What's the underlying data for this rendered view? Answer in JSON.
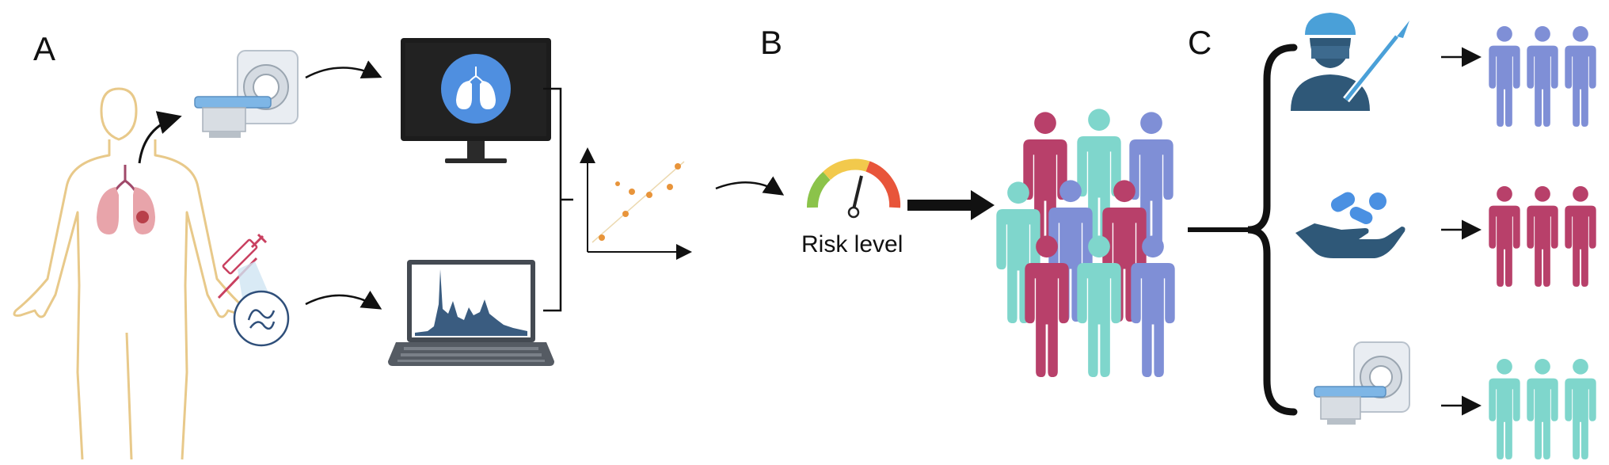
{
  "panels": {
    "a_label": "A",
    "b_label": "B",
    "c_label": "C"
  },
  "gauge": {
    "label": "Risk level"
  },
  "icons": {
    "body": "human-body-outline-icon",
    "ct": "ct-scanner-icon",
    "monitor": "monitor-lungs-icon",
    "syringe": "syringe-icon",
    "dna": "dna-sample-icon",
    "laptop": "laptop-spectrum-icon",
    "scatter": "scatter-plot-icon",
    "gauge": "risk-gauge-icon",
    "crowd": "patient-crowd-icon",
    "surgeon": "surgeon-scalpel-icon",
    "pills": "hand-pills-icon"
  },
  "colors": {
    "crimson": "#b8406a",
    "teal": "#7fd6cc",
    "blue": "#7f8fd6",
    "navy": "#2f5878",
    "pill_blue": "#4a90e2",
    "orange_dot": "#e8943a",
    "body_outline": "#e8c98a",
    "lung": "#e8a4aa"
  }
}
